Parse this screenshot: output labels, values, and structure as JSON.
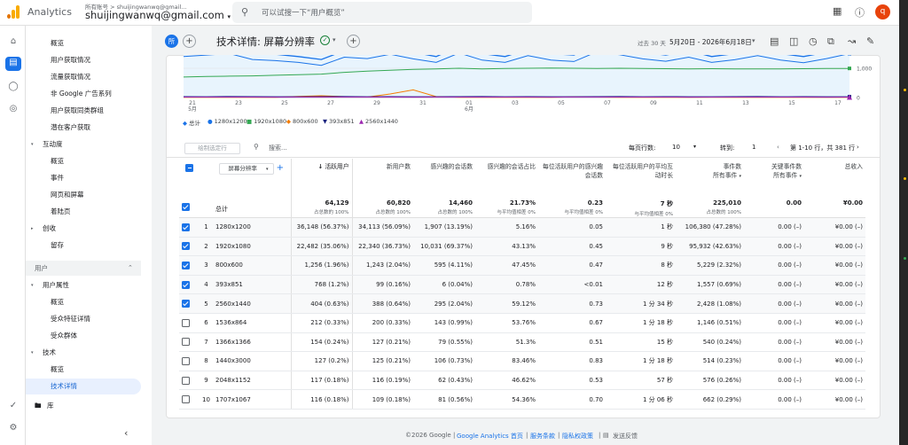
{
  "topbar": {
    "app_name": "Analytics",
    "account_label": "所有账号 > shuijingwanwq@gmail...",
    "account_email": "shuijingwanwq@gmail.com",
    "search_placeholder": "可以试搜一下“用户概览”",
    "avatar_letter": "q",
    "brand_colors": {
      "logo_orange": "#f9ab00",
      "logo_dark": "#e37400",
      "avatar": "#e8430b"
    }
  },
  "nav": {
    "items": [
      {
        "label": "概览"
      },
      {
        "label": "用户获取情况"
      },
      {
        "label": "流量获取情况"
      },
      {
        "label": "非 Google 广告系列"
      },
      {
        "label": "用户获取同类群组"
      },
      {
        "label": "潜在客户获取"
      },
      {
        "label": "互动度",
        "group": true
      },
      {
        "label": "概览"
      },
      {
        "label": "事件"
      },
      {
        "label": "网页和屏幕"
      },
      {
        "label": "着陆页"
      },
      {
        "label": "创收",
        "group": true
      },
      {
        "label": "留存"
      },
      {
        "label": "用户",
        "section": true
      },
      {
        "label": "用户属性",
        "group": true
      },
      {
        "label": "概览"
      },
      {
        "label": "受众特征详情"
      },
      {
        "label": "受众群体"
      },
      {
        "label": "技术",
        "group": true
      },
      {
        "label": "概览"
      },
      {
        "label": "技术详情",
        "active": true
      }
    ],
    "library_label": "库"
  },
  "header": {
    "all_badge": "所",
    "title": "技术详情: 屏幕分辨率",
    "date_range_label": "过去 30 天",
    "date_range": "5月20日 - 2026年6月18日"
  },
  "chart_data": {
    "type": "line",
    "x_labels": [
      "21\n5月",
      "23",
      "25",
      "27",
      "29",
      "31",
      "01\n6月",
      "03",
      "05",
      "07",
      "09",
      "11",
      "13",
      "15",
      "17"
    ],
    "y_ticks": [
      "1,000",
      "0"
    ],
    "series": [
      {
        "name": "总计",
        "color": "#1a73e8",
        "values": [
          1650,
          1700,
          1800,
          1500,
          1480,
          1400,
          1300,
          1600,
          1550,
          1700,
          1550,
          1400,
          1750,
          1500,
          1400,
          1650,
          1500,
          1450,
          1800,
          1700,
          1550,
          1450,
          1600,
          1400,
          1500,
          1650,
          1500,
          1400,
          1550,
          1700
        ]
      },
      {
        "name": "1280x1200",
        "color": "#1a73e8",
        "values": [
          1400,
          1450,
          1500,
          1300,
          1260,
          1200,
          1100,
          1380,
          1330,
          1480,
          1320,
          1200,
          1520,
          1280,
          1200,
          1430,
          1280,
          1230,
          1560,
          1460,
          1320,
          1240,
          1380,
          1200,
          1290,
          1430,
          1280,
          1190,
          1330,
          1500
        ]
      },
      {
        "name": "1920x1080",
        "color": "#34a853",
        "values": [
          700,
          720,
          730,
          740,
          760,
          780,
          800,
          860,
          900,
          930,
          960,
          980,
          1000,
          980,
          990,
          1000,
          1010,
          1000,
          990,
          1000,
          990,
          985,
          980,
          985,
          980,
          975,
          980,
          985,
          990,
          995
        ]
      },
      {
        "name": "800x600",
        "color": "#f57c00",
        "values": [
          5,
          6,
          5,
          8,
          6,
          40,
          60,
          30,
          15,
          120,
          260,
          30,
          10,
          8,
          6,
          5,
          10,
          20,
          15,
          8,
          6,
          10,
          8,
          12,
          10,
          8,
          6,
          10,
          8,
          6
        ]
      },
      {
        "name": "393x851",
        "color": "#1a237e",
        "values": [
          30,
          28,
          32,
          30,
          26,
          28,
          30,
          32,
          28,
          30,
          26,
          28,
          30,
          32,
          28,
          30,
          26,
          28,
          30,
          32,
          28,
          30,
          26,
          28,
          30,
          32,
          28,
          30,
          26,
          28
        ]
      },
      {
        "name": "2560x1440",
        "color": "#9c27b0",
        "values": [
          15,
          14,
          16,
          15,
          13,
          14,
          15,
          16,
          14,
          15,
          13,
          14,
          15,
          16,
          14,
          15,
          13,
          14,
          15,
          16,
          14,
          15,
          13,
          14,
          15,
          16,
          14,
          15,
          13,
          14
        ]
      }
    ]
  },
  "table_toolbar": {
    "draw_selected": "绘制选定行",
    "search_placeholder": "搜索...",
    "rows_per_page_label": "每页行数:",
    "rows_per_page": "10",
    "goto_label": "转到:",
    "goto_value": "1",
    "range": "第 1-10 行，共 381 行"
  },
  "table": {
    "dimension": "屏幕分辨率",
    "headers": [
      "活跃用户",
      "新用户数",
      "感兴趣的会话数",
      "感兴趣的会话占比",
      "每位活跃用户的感兴趣会话数",
      "每位活跃用户的平均互动时长",
      "事件数",
      "关键事件数",
      "总收入"
    ],
    "header_sub": [
      "",
      "",
      "",
      "",
      "",
      "",
      "所有事件",
      "所有事件",
      ""
    ],
    "total_label": "总计",
    "totals": [
      {
        "v": "64,129",
        "s": "占总数的 100%"
      },
      {
        "v": "60,820",
        "s": "占总数的 100%"
      },
      {
        "v": "14,460",
        "s": "占总数的 100%"
      },
      {
        "v": "21.73%",
        "s": "与平均值相差 0%"
      },
      {
        "v": "0.23",
        "s": "与平均值相差 0%"
      },
      {
        "v": "7 秒",
        "s": "与平均值相差 0%"
      },
      {
        "v": "225,010",
        "s": "占总数的 100%"
      },
      {
        "v": "0.00",
        "s": ""
      },
      {
        "v": "¥0.00",
        "s": ""
      }
    ],
    "rows": [
      {
        "n": "1",
        "dim": "1280x1200",
        "sel": true,
        "c": [
          "36,148 (56.37%)",
          "34,113 (56.09%)",
          "1,907 (13.19%)",
          "5.16%",
          "0.05",
          "1 秒",
          "106,380 (47.28%)",
          "0.00 (–)",
          "¥0.00 (–)"
        ]
      },
      {
        "n": "2",
        "dim": "1920x1080",
        "sel": true,
        "c": [
          "22,482 (35.06%)",
          "22,340 (36.73%)",
          "10,031 (69.37%)",
          "43.13%",
          "0.45",
          "9 秒",
          "95,932 (42.63%)",
          "0.00 (–)",
          "¥0.00 (–)"
        ]
      },
      {
        "n": "3",
        "dim": "800x600",
        "sel": true,
        "c": [
          "1,256 (1.96%)",
          "1,243 (2.04%)",
          "595 (4.11%)",
          "47.45%",
          "0.47",
          "8 秒",
          "5,229 (2.32%)",
          "0.00 (–)",
          "¥0.00 (–)"
        ]
      },
      {
        "n": "4",
        "dim": "393x851",
        "sel": true,
        "c": [
          "768 (1.2%)",
          "99 (0.16%)",
          "6 (0.04%)",
          "0.78%",
          "<0.01",
          "12 秒",
          "1,557 (0.69%)",
          "0.00 (–)",
          "¥0.00 (–)"
        ]
      },
      {
        "n": "5",
        "dim": "2560x1440",
        "sel": true,
        "c": [
          "404 (0.63%)",
          "388 (0.64%)",
          "295 (2.04%)",
          "59.12%",
          "0.73",
          "1 分 34 秒",
          "2,428 (1.08%)",
          "0.00 (–)",
          "¥0.00 (–)"
        ]
      },
      {
        "n": "6",
        "dim": "1536x864",
        "sel": false,
        "c": [
          "212 (0.33%)",
          "200 (0.33%)",
          "143 (0.99%)",
          "53.76%",
          "0.67",
          "1 分 18 秒",
          "1,146 (0.51%)",
          "0.00 (–)",
          "¥0.00 (–)"
        ]
      },
      {
        "n": "7",
        "dim": "1366x1366",
        "sel": false,
        "c": [
          "154 (0.24%)",
          "127 (0.21%)",
          "79 (0.55%)",
          "51.3%",
          "0.51",
          "15 秒",
          "540 (0.24%)",
          "0.00 (–)",
          "¥0.00 (–)"
        ]
      },
      {
        "n": "8",
        "dim": "1440x3000",
        "sel": false,
        "c": [
          "127 (0.2%)",
          "125 (0.21%)",
          "106 (0.73%)",
          "83.46%",
          "0.83",
          "1 分 18 秒",
          "514 (0.23%)",
          "0.00 (–)",
          "¥0.00 (–)"
        ]
      },
      {
        "n": "9",
        "dim": "2048x1152",
        "sel": false,
        "c": [
          "117 (0.18%)",
          "116 (0.19%)",
          "62 (0.43%)",
          "46.62%",
          "0.53",
          "57 秒",
          "576 (0.26%)",
          "0.00 (–)",
          "¥0.00 (–)"
        ]
      },
      {
        "n": "10",
        "dim": "1707x1067",
        "sel": false,
        "c": [
          "116 (0.18%)",
          "109 (0.18%)",
          "81 (0.56%)",
          "54.36%",
          "0.70",
          "1 分 06 秒",
          "662 (0.29%)",
          "0.00 (–)",
          "¥0.00 (–)"
        ]
      }
    ]
  },
  "footer": {
    "copyright": "©2026 Google",
    "home": "Google Analytics 首页",
    "terms": "服务条款",
    "privacy": "隐私权政策",
    "feedback": "发送反馈"
  }
}
